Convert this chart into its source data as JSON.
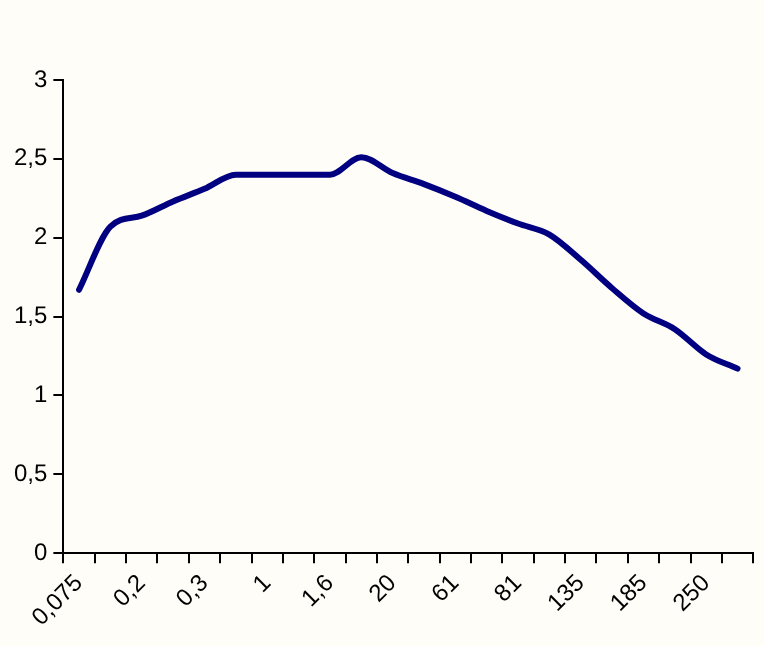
{
  "chart_data": {
    "type": "line",
    "categories": [
      "0,075",
      null,
      "0,2",
      null,
      "0,3",
      null,
      "1",
      null,
      "1,6",
      null,
      "20",
      null,
      "61",
      null,
      "81",
      null,
      "135",
      null,
      "185",
      null,
      "250",
      null
    ],
    "series": [
      {
        "color": "#000080",
        "values": [
          1.67,
          2.07,
          2.14,
          2.23,
          2.31,
          2.4,
          2.4,
          2.4,
          2.4,
          2.51,
          2.41,
          2.34,
          2.26,
          2.17,
          2.09,
          2.02,
          1.86,
          1.68,
          1.52,
          1.42,
          1.26,
          1.17
        ]
      }
    ],
    "ylim": [
      0,
      3
    ],
    "yticks": [
      0,
      {
        "value": 0.5,
        "label": "0,5"
      },
      1,
      {
        "value": 1.5,
        "label": "1,5"
      },
      2,
      {
        "value": 2.5,
        "label": "2,5"
      },
      3
    ],
    "grid": false,
    "legend": false,
    "marker": "none",
    "line_style": "solid"
  }
}
